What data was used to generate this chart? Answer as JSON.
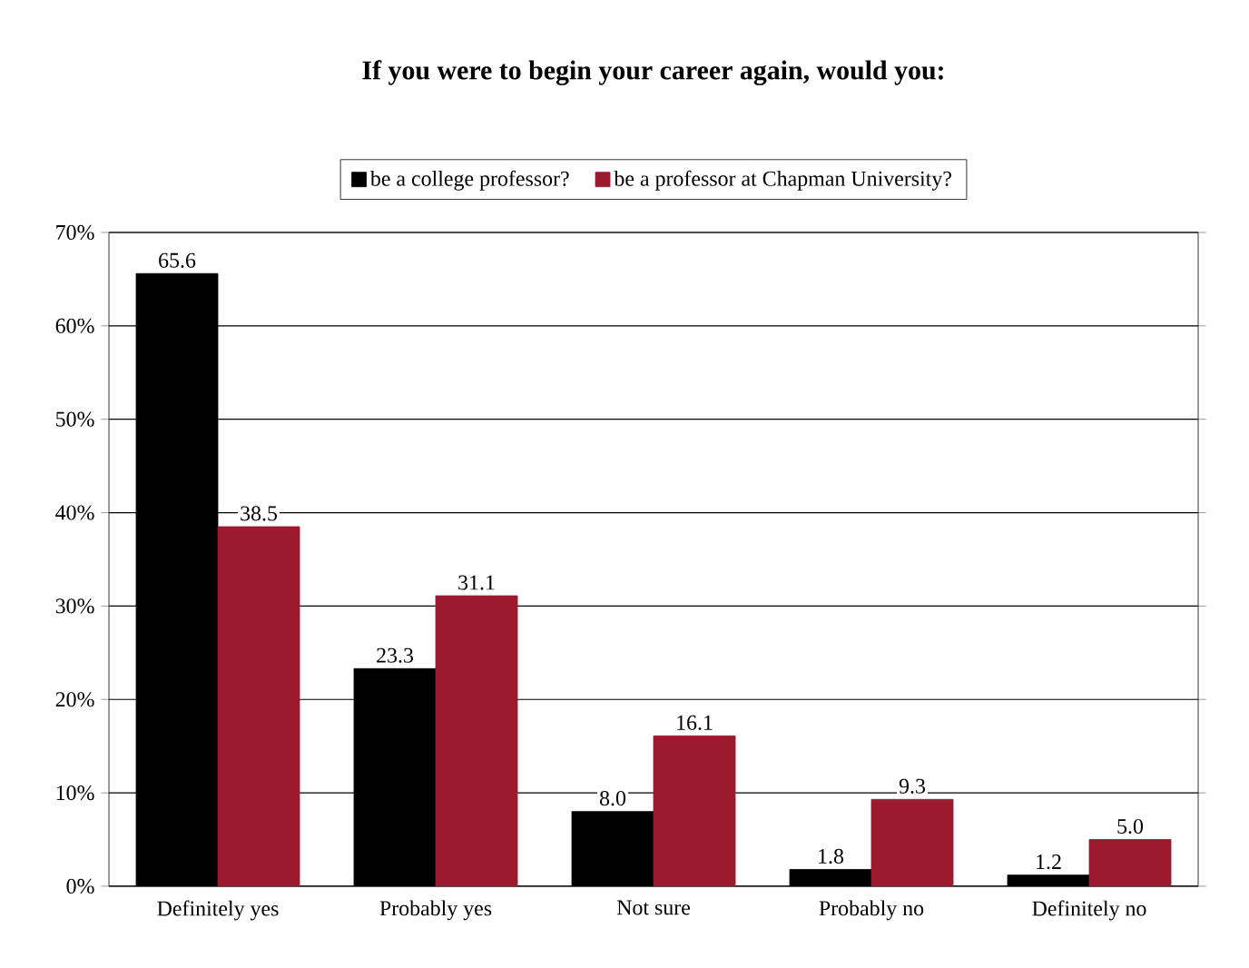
{
  "chart_data": {
    "type": "bar",
    "title": "If you were to begin your career again, would you:",
    "categories": [
      "Definitely yes",
      "Probably yes",
      "Not sure",
      "Probably no",
      "Definitely no"
    ],
    "series": [
      {
        "name": "be a college professor?",
        "color": "#000000",
        "values": [
          65.6,
          23.3,
          8.0,
          1.8,
          1.2
        ],
        "value_labels": [
          "65.6",
          "23.3",
          "8.0",
          "1.8",
          "1.2"
        ]
      },
      {
        "name": "be a professor at Chapman University?",
        "color": "#9b1b2e",
        "values": [
          38.5,
          31.1,
          16.1,
          9.3,
          5.0
        ],
        "value_labels": [
          "38.5",
          "31.1",
          "16.1",
          "9.3",
          "5.0"
        ]
      }
    ],
    "ylim": [
      0,
      70
    ],
    "yticks": [
      {
        "value": 0,
        "label": "0%"
      },
      {
        "value": 10,
        "label": "10%"
      },
      {
        "value": 20,
        "label": "20%"
      },
      {
        "value": 30,
        "label": "30%"
      },
      {
        "value": 40,
        "label": "40%"
      },
      {
        "value": 50,
        "label": "50%"
      },
      {
        "value": 60,
        "label": "60%"
      },
      {
        "value": 70,
        "label": "70%"
      }
    ],
    "grid": "y",
    "legend": "top"
  }
}
